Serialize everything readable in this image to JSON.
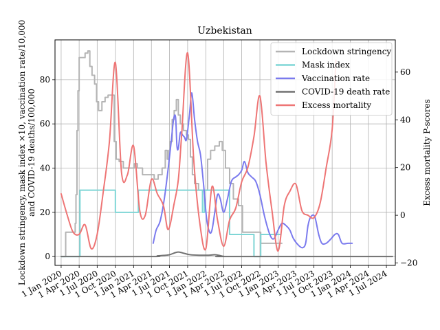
{
  "chart_data": {
    "type": "line",
    "title": "Uzbekistan",
    "ylabel_left": [
      "Lockdown stringency, mask index ×10, vaccination rate/10,000",
      "and COVID-19 deaths/100,000"
    ],
    "ylabel_right": "Excess mortality P-scores",
    "xlim": [
      "2019-12-01",
      "2024-08-15"
    ],
    "ylim_left": [
      -4,
      98
    ],
    "ylim_right": [
      -21,
      73.5
    ],
    "x_ticks": [
      "2020-01-01",
      "2020-04-01",
      "2020-07-01",
      "2020-10-01",
      "2021-01-01",
      "2021-04-01",
      "2021-07-01",
      "2021-10-01",
      "2022-01-01",
      "2022-04-01",
      "2022-07-01",
      "2022-10-01",
      "2023-01-01",
      "2023-04-01",
      "2023-07-01",
      "2023-10-01",
      "2024-01-01",
      "2024-04-01",
      "2024-07-01"
    ],
    "x_tick_labels": [
      "1 Jan 2020",
      "1 Apr 2020",
      "1 Jul 2020",
      "1 Oct 2020",
      "1 Jan 2021",
      "1 Apr 2021",
      "1 Jul 2021",
      "1 Oct 2021",
      "1 Jan 2022",
      "1 Apr 2022",
      "1 Jul 2022",
      "1 Oct 2022",
      "1 Jan 2023",
      "1 Apr 2023",
      "1 Jul 2023",
      "1 Oct 2023",
      "1 Jan 2024",
      "1 Apr 2024",
      "1 Jul 2024"
    ],
    "y_ticks_left": [
      0,
      20,
      40,
      60,
      80
    ],
    "y_ticks_right": [
      -20,
      0,
      20,
      40,
      60
    ],
    "grid": true,
    "legend_position": "top-right",
    "series": [
      {
        "name": "Lockdown stringency",
        "axis": "left",
        "color": "#b4b4b4",
        "step": true,
        "points": [
          [
            "2020-01-01",
            0
          ],
          [
            "2020-01-20",
            0
          ],
          [
            "2020-01-24",
            11
          ],
          [
            "2020-03-01",
            11
          ],
          [
            "2020-03-12",
            15
          ],
          [
            "2020-03-16",
            28
          ],
          [
            "2020-03-21",
            57
          ],
          [
            "2020-03-26",
            75
          ],
          [
            "2020-04-01",
            90
          ],
          [
            "2020-05-01",
            92
          ],
          [
            "2020-05-15",
            93
          ],
          [
            "2020-05-25",
            86
          ],
          [
            "2020-06-05",
            82
          ],
          [
            "2020-06-18",
            78
          ],
          [
            "2020-06-28",
            70
          ],
          [
            "2020-07-08",
            66
          ],
          [
            "2020-07-25",
            70
          ],
          [
            "2020-08-10",
            72
          ],
          [
            "2020-08-25",
            73
          ],
          [
            "2020-09-25",
            52
          ],
          [
            "2020-10-05",
            44
          ],
          [
            "2020-10-20",
            43
          ],
          [
            "2020-11-10",
            40
          ],
          [
            "2020-12-20",
            40
          ],
          [
            "2021-01-05",
            42
          ],
          [
            "2021-01-20",
            40
          ],
          [
            "2021-02-15",
            37
          ],
          [
            "2021-03-01",
            37
          ],
          [
            "2021-04-15",
            35
          ],
          [
            "2021-05-05",
            37
          ],
          [
            "2021-05-25",
            40
          ],
          [
            "2021-06-10",
            48
          ],
          [
            "2021-06-20",
            44
          ],
          [
            "2021-06-28",
            48
          ],
          [
            "2021-07-05",
            52
          ],
          [
            "2021-07-15",
            62
          ],
          [
            "2021-07-25",
            66
          ],
          [
            "2021-08-05",
            71
          ],
          [
            "2021-08-15",
            64
          ],
          [
            "2021-08-25",
            60
          ],
          [
            "2021-09-10",
            57
          ],
          [
            "2021-09-25",
            55
          ],
          [
            "2021-10-05",
            53
          ],
          [
            "2021-10-15",
            45
          ],
          [
            "2021-10-25",
            37
          ],
          [
            "2021-11-05",
            33
          ],
          [
            "2021-11-25",
            30
          ],
          [
            "2022-01-10",
            44
          ],
          [
            "2022-01-25",
            48
          ],
          [
            "2022-02-15",
            50
          ],
          [
            "2022-03-10",
            52
          ],
          [
            "2022-03-25",
            48
          ],
          [
            "2022-04-10",
            40
          ],
          [
            "2022-05-01",
            33
          ],
          [
            "2022-05-20",
            26
          ],
          [
            "2022-06-15",
            23
          ],
          [
            "2022-07-05",
            11
          ],
          [
            "2022-07-20",
            11
          ],
          [
            "2022-09-01",
            11
          ],
          [
            "2022-10-05",
            6
          ],
          [
            "2023-01-01",
            6
          ],
          [
            "2023-01-20",
            6
          ]
        ]
      },
      {
        "name": "Mask index",
        "axis": "left",
        "color": "#7fd6d6",
        "step": true,
        "points": [
          [
            "2020-01-01",
            0
          ],
          [
            "2020-03-25",
            0
          ],
          [
            "2020-04-05",
            30
          ],
          [
            "2020-09-15",
            30
          ],
          [
            "2020-10-01",
            20
          ],
          [
            "2021-01-15",
            20
          ],
          [
            "2021-01-25",
            30
          ],
          [
            "2021-12-01",
            30
          ],
          [
            "2021-12-15",
            20
          ],
          [
            "2021-12-25",
            30
          ],
          [
            "2022-04-15",
            30
          ],
          [
            "2022-05-01",
            10
          ],
          [
            "2022-08-15",
            10
          ],
          [
            "2022-09-01",
            0
          ],
          [
            "2022-09-25",
            0
          ],
          [
            "2022-10-05",
            10
          ],
          [
            "2023-01-01",
            10
          ],
          [
            "2023-01-10",
            10
          ]
        ]
      },
      {
        "name": "Vaccination rate",
        "axis": "left",
        "color": "#7a7aee",
        "step": false,
        "points": [
          [
            "2021-04-10",
            6
          ],
          [
            "2021-04-25",
            12
          ],
          [
            "2021-05-15",
            16
          ],
          [
            "2021-06-05",
            26
          ],
          [
            "2021-06-25",
            40
          ],
          [
            "2021-07-10",
            52
          ],
          [
            "2021-07-22",
            62
          ],
          [
            "2021-08-01",
            63
          ],
          [
            "2021-08-08",
            50
          ],
          [
            "2021-08-15",
            49
          ],
          [
            "2021-08-25",
            56
          ],
          [
            "2021-09-05",
            55
          ],
          [
            "2021-09-15",
            54
          ],
          [
            "2021-09-25",
            53
          ],
          [
            "2021-10-10",
            64
          ],
          [
            "2021-10-22",
            74
          ],
          [
            "2021-11-05",
            62
          ],
          [
            "2021-11-20",
            52
          ],
          [
            "2021-12-05",
            46
          ],
          [
            "2021-12-20",
            33
          ],
          [
            "2022-01-05",
            17
          ],
          [
            "2022-01-20",
            11
          ],
          [
            "2022-02-01",
            12
          ],
          [
            "2022-02-15",
            20
          ],
          [
            "2022-03-01",
            28
          ],
          [
            "2022-03-15",
            26
          ],
          [
            "2022-04-01",
            20
          ],
          [
            "2022-04-20",
            26
          ],
          [
            "2022-05-10",
            34
          ],
          [
            "2022-06-01",
            36
          ],
          [
            "2022-06-15",
            37
          ],
          [
            "2022-07-01",
            39
          ],
          [
            "2022-07-15",
            43
          ],
          [
            "2022-08-01",
            38
          ],
          [
            "2022-08-20",
            36
          ],
          [
            "2022-09-10",
            34
          ],
          [
            "2022-10-01",
            28
          ],
          [
            "2022-10-25",
            18
          ],
          [
            "2022-11-20",
            10
          ],
          [
            "2022-12-10",
            8
          ],
          [
            "2023-01-01",
            12
          ],
          [
            "2023-01-20",
            15
          ],
          [
            "2023-02-10",
            14
          ],
          [
            "2023-03-01",
            12
          ],
          [
            "2023-03-20",
            8
          ],
          [
            "2023-04-15",
            5
          ],
          [
            "2023-05-05",
            4
          ],
          [
            "2023-05-20",
            6
          ],
          [
            "2023-06-01",
            14
          ],
          [
            "2023-06-15",
            18
          ],
          [
            "2023-07-05",
            18
          ],
          [
            "2023-07-25",
            10
          ],
          [
            "2023-08-10",
            6
          ],
          [
            "2023-09-01",
            6
          ],
          [
            "2023-09-25",
            8
          ],
          [
            "2023-10-15",
            10
          ],
          [
            "2023-11-01",
            10
          ],
          [
            "2023-11-20",
            6
          ],
          [
            "2023-12-20",
            6
          ],
          [
            "2024-01-10",
            6
          ]
        ]
      },
      {
        "name": "COVID-19 death rate",
        "axis": "left",
        "color": "#707070",
        "step": false,
        "points": [
          [
            "2020-01-01",
            0
          ],
          [
            "2021-04-01",
            0
          ],
          [
            "2021-05-01",
            0.3
          ],
          [
            "2021-06-01",
            0.5
          ],
          [
            "2021-07-01",
            0.8
          ],
          [
            "2021-08-01",
            1.8
          ],
          [
            "2021-08-20",
            2.0
          ],
          [
            "2021-09-15",
            1.4
          ],
          [
            "2021-10-15",
            0.8
          ],
          [
            "2021-12-01",
            0.6
          ],
          [
            "2022-01-15",
            0.6
          ],
          [
            "2022-02-15",
            0.8
          ],
          [
            "2022-03-10",
            0.5
          ],
          [
            "2022-04-01",
            0.1
          ],
          [
            "2022-05-01",
            0
          ],
          [
            "2024-08-01",
            0
          ]
        ]
      },
      {
        "name": "Excess mortality",
        "axis": "right",
        "color": "#ee7575",
        "step": false,
        "points": [
          [
            "2020-01-01",
            9
          ],
          [
            "2020-02-01",
            0
          ],
          [
            "2020-03-01",
            -7
          ],
          [
            "2020-04-01",
            -8
          ],
          [
            "2020-05-01",
            -4
          ],
          [
            "2020-06-01",
            -14
          ],
          [
            "2020-07-01",
            -8
          ],
          [
            "2020-08-01",
            10
          ],
          [
            "2020-09-01",
            31
          ],
          [
            "2020-10-01",
            64
          ],
          [
            "2020-11-01",
            18
          ],
          [
            "2020-12-01",
            17
          ],
          [
            "2021-01-01",
            29
          ],
          [
            "2021-02-01",
            2
          ],
          [
            "2021-03-01",
            0
          ],
          [
            "2021-04-01",
            15
          ],
          [
            "2021-05-01",
            9
          ],
          [
            "2021-06-01",
            4
          ],
          [
            "2021-06-25",
            -6
          ],
          [
            "2021-07-25",
            5
          ],
          [
            "2021-08-15",
            15
          ],
          [
            "2021-09-01",
            34
          ],
          [
            "2021-10-01",
            68
          ],
          [
            "2021-11-01",
            23
          ],
          [
            "2021-12-01",
            -3
          ],
          [
            "2022-01-01",
            -14
          ],
          [
            "2022-02-01",
            12
          ],
          [
            "2022-03-01",
            -2
          ],
          [
            "2022-04-01",
            -13
          ],
          [
            "2022-05-01",
            -2
          ],
          [
            "2022-06-01",
            3
          ],
          [
            "2022-07-01",
            14
          ],
          [
            "2022-08-01",
            20
          ],
          [
            "2022-09-01",
            33
          ],
          [
            "2022-10-01",
            50
          ],
          [
            "2022-11-01",
            22
          ],
          [
            "2022-12-01",
            2
          ],
          [
            "2023-01-01",
            -15
          ],
          [
            "2023-02-01",
            4
          ],
          [
            "2023-03-01",
            10
          ],
          [
            "2023-04-01",
            13
          ],
          [
            "2023-05-01",
            2
          ],
          [
            "2023-06-01",
            0
          ],
          [
            "2023-07-01",
            -1
          ],
          [
            "2023-08-01",
            5
          ],
          [
            "2023-09-01",
            20
          ],
          [
            "2023-10-01",
            36
          ],
          [
            "2023-10-20",
            65
          ]
        ]
      }
    ]
  }
}
